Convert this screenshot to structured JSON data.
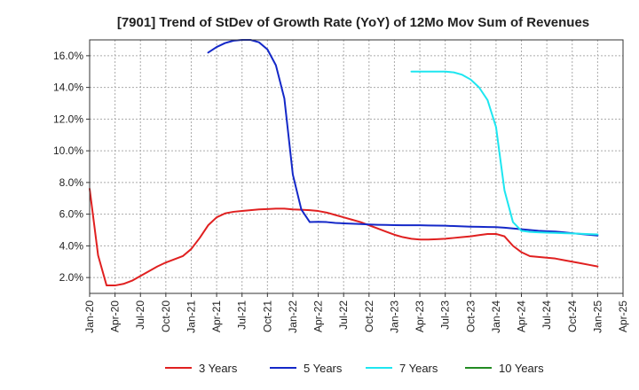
{
  "chart_data": {
    "type": "line",
    "title": "[7901]  Trend of StDev of Growth Rate (YoY) of 12Mo Mov Sum of Revenues",
    "xlabel": "",
    "ylabel": "",
    "ylim": [
      1.0,
      17.0
    ],
    "y_ticks": [
      2.0,
      4.0,
      6.0,
      8.0,
      10.0,
      12.0,
      14.0,
      16.0
    ],
    "y_tick_labels": [
      "2.0%",
      "4.0%",
      "6.0%",
      "8.0%",
      "10.0%",
      "12.0%",
      "14.0%",
      "16.0%"
    ],
    "x_ticks": [
      "Jan-20",
      "Apr-20",
      "Jul-20",
      "Oct-20",
      "Jan-21",
      "Apr-21",
      "Jul-21",
      "Oct-21",
      "Jan-22",
      "Apr-22",
      "Jul-22",
      "Oct-22",
      "Jan-23",
      "Apr-23",
      "Jul-23",
      "Oct-23",
      "Jan-24",
      "Apr-24",
      "Jul-24",
      "Oct-24",
      "Jan-25",
      "Apr-25"
    ],
    "x_range_months": [
      0,
      63
    ],
    "grid": true,
    "legend_position": "bottom",
    "series": [
      {
        "name": "3 Years",
        "color": "#e02020",
        "points": [
          [
            0,
            7.6
          ],
          [
            1,
            3.4
          ],
          [
            2,
            1.5
          ],
          [
            3,
            1.5
          ],
          [
            4,
            1.6
          ],
          [
            5,
            1.8
          ],
          [
            6,
            2.1
          ],
          [
            7,
            2.4
          ],
          [
            8,
            2.7
          ],
          [
            9,
            2.95
          ],
          [
            10,
            3.15
          ],
          [
            11,
            3.35
          ],
          [
            12,
            3.8
          ],
          [
            13,
            4.5
          ],
          [
            14,
            5.3
          ],
          [
            15,
            5.8
          ],
          [
            16,
            6.05
          ],
          [
            17,
            6.15
          ],
          [
            18,
            6.2
          ],
          [
            19,
            6.25
          ],
          [
            20,
            6.3
          ],
          [
            21,
            6.32
          ],
          [
            22,
            6.35
          ],
          [
            23,
            6.35
          ],
          [
            24,
            6.3
          ],
          [
            25,
            6.28
          ],
          [
            26,
            6.25
          ],
          [
            27,
            6.2
          ],
          [
            28,
            6.1
          ],
          [
            29,
            5.95
          ],
          [
            30,
            5.8
          ],
          [
            31,
            5.65
          ],
          [
            32,
            5.5
          ],
          [
            33,
            5.3
          ],
          [
            34,
            5.1
          ],
          [
            35,
            4.9
          ],
          [
            36,
            4.7
          ],
          [
            37,
            4.55
          ],
          [
            38,
            4.45
          ],
          [
            39,
            4.4
          ],
          [
            40,
            4.4
          ],
          [
            41,
            4.42
          ],
          [
            42,
            4.45
          ],
          [
            43,
            4.5
          ],
          [
            44,
            4.55
          ],
          [
            45,
            4.6
          ],
          [
            46,
            4.68
          ],
          [
            47,
            4.75
          ],
          [
            48,
            4.75
          ],
          [
            49,
            4.6
          ],
          [
            50,
            4.0
          ],
          [
            51,
            3.6
          ],
          [
            52,
            3.35
          ],
          [
            53,
            3.3
          ],
          [
            54,
            3.25
          ],
          [
            55,
            3.2
          ],
          [
            56,
            3.1
          ],
          [
            57,
            3.0
          ],
          [
            58,
            2.9
          ],
          [
            59,
            2.8
          ],
          [
            60,
            2.7
          ]
        ]
      },
      {
        "name": "5 Years",
        "color": "#1428c8",
        "points": [
          [
            14,
            16.2
          ],
          [
            15,
            16.55
          ],
          [
            16,
            16.8
          ],
          [
            17,
            16.95
          ],
          [
            18,
            17.0
          ],
          [
            19,
            17.0
          ],
          [
            20,
            16.85
          ],
          [
            21,
            16.4
          ],
          [
            22,
            15.4
          ],
          [
            23,
            13.3
          ],
          [
            24,
            8.5
          ],
          [
            25,
            6.3
          ],
          [
            26,
            5.5
          ],
          [
            27,
            5.52
          ],
          [
            28,
            5.5
          ],
          [
            29,
            5.45
          ],
          [
            30,
            5.42
          ],
          [
            31,
            5.4
          ],
          [
            32,
            5.38
          ],
          [
            33,
            5.35
          ],
          [
            34,
            5.33
          ],
          [
            35,
            5.32
          ],
          [
            36,
            5.31
          ],
          [
            37,
            5.3
          ],
          [
            38,
            5.3
          ],
          [
            39,
            5.3
          ],
          [
            40,
            5.29
          ],
          [
            41,
            5.28
          ],
          [
            42,
            5.27
          ],
          [
            43,
            5.25
          ],
          [
            44,
            5.23
          ],
          [
            45,
            5.21
          ],
          [
            46,
            5.2
          ],
          [
            47,
            5.19
          ],
          [
            48,
            5.18
          ],
          [
            49,
            5.15
          ],
          [
            50,
            5.1
          ],
          [
            51,
            5.05
          ],
          [
            52,
            5.0
          ],
          [
            53,
            4.95
          ],
          [
            54,
            4.92
          ],
          [
            55,
            4.9
          ],
          [
            56,
            4.85
          ],
          [
            57,
            4.8
          ],
          [
            58,
            4.75
          ],
          [
            59,
            4.7
          ],
          [
            60,
            4.65
          ]
        ]
      },
      {
        "name": "7 Years",
        "color": "#1ee6f0",
        "points": [
          [
            38,
            15.0
          ],
          [
            39,
            15.0
          ],
          [
            40,
            15.0
          ],
          [
            41,
            15.0
          ],
          [
            42,
            15.0
          ],
          [
            43,
            14.95
          ],
          [
            44,
            14.8
          ],
          [
            45,
            14.5
          ],
          [
            46,
            14.0
          ],
          [
            47,
            13.2
          ],
          [
            48,
            11.5
          ],
          [
            49,
            7.5
          ],
          [
            50,
            5.5
          ],
          [
            51,
            4.95
          ],
          [
            52,
            4.88
          ],
          [
            53,
            4.85
          ],
          [
            54,
            4.83
          ],
          [
            55,
            4.82
          ],
          [
            56,
            4.8
          ],
          [
            57,
            4.78
          ],
          [
            58,
            4.76
          ],
          [
            59,
            4.74
          ],
          [
            60,
            4.72
          ]
        ]
      },
      {
        "name": "10 Years",
        "color": "#228b22",
        "points": []
      }
    ]
  }
}
